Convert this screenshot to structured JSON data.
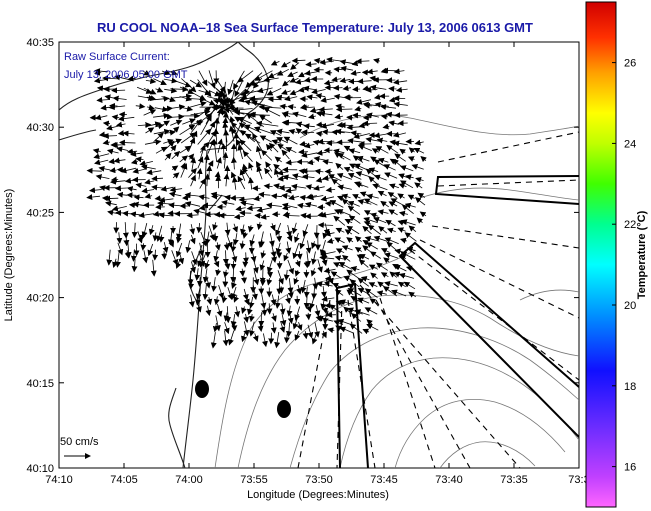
{
  "title": "RU COOL  NOAA–18  Sea Surface Temperature:  July 13, 2006 0613 GMT",
  "legend": {
    "line1": "Raw Surface Current:",
    "line2": "July 13, 2006 05:00 GMT"
  },
  "scale_label": "50 cm/s",
  "xlabel": "Longitude (Degrees:Minutes)",
  "ylabel": "Latitude (Degrees:Minutes)",
  "x_ticks": [
    "74:10",
    "74:05",
    "74:00",
    "73:55",
    "73:50",
    "73:45",
    "73:40",
    "73:35",
    "73:3"
  ],
  "y_ticks": [
    "40:35",
    "40:30",
    "40:25",
    "40:20",
    "40:15",
    "40:10"
  ],
  "colorbar": {
    "label": "Temperature (°C)",
    "ticks": [
      "26",
      "24",
      "22",
      "20",
      "18",
      "16"
    ],
    "range": [
      15,
      27.5
    ]
  },
  "colors": {
    "title": "#1a1aa8",
    "arrows": "#000000",
    "contours": "#777777",
    "coast": "#222222"
  }
}
